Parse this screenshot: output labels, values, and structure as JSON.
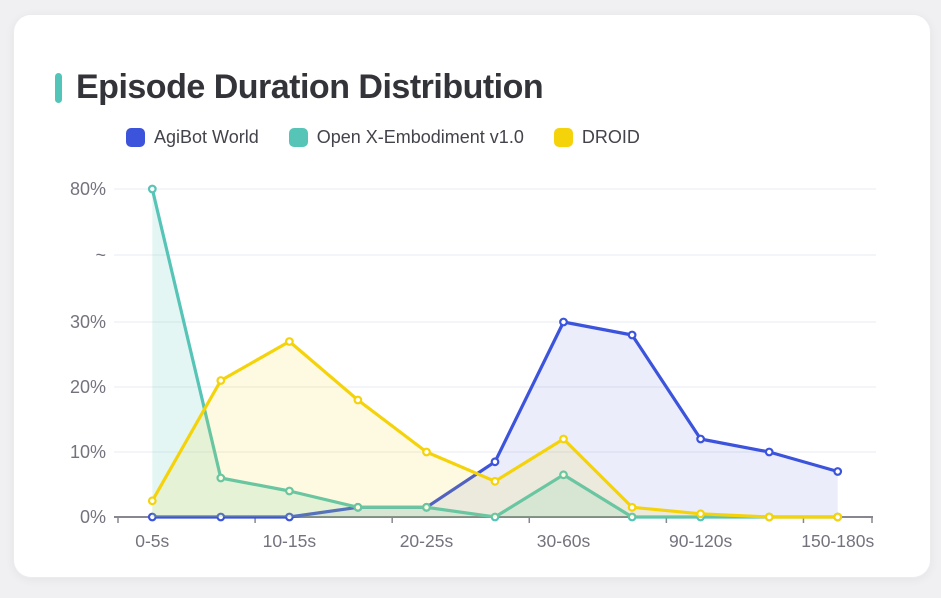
{
  "page": {
    "title_accent_color": "#52C5B8"
  },
  "chart_data": {
    "type": "line",
    "title": "Episode Duration Distribution",
    "categories": [
      "0-5s",
      "",
      "10-15s",
      "",
      "20-25s",
      "",
      "30-60s",
      "",
      "90-120s",
      "",
      "150-180s"
    ],
    "series": [
      {
        "name": "AgiBot World",
        "color": "#3C53DB",
        "fill_color": "rgba(60,83,219,0.10)",
        "values": [
          0,
          0,
          0,
          1.5,
          1.5,
          8.5,
          30,
          28,
          12,
          10,
          7
        ]
      },
      {
        "name": "Open X-Embodiment v1.0",
        "color": "#56C4B6",
        "fill_color": "rgba(86,196,182,0.16)",
        "values": [
          80,
          6,
          4,
          1.5,
          1.5,
          0,
          6.5,
          0,
          0,
          0,
          0
        ]
      },
      {
        "name": "DROID",
        "color": "#F5D30B",
        "fill_color": "rgba(245,211,11,0.12)",
        "values": [
          2.5,
          21,
          27,
          18,
          10,
          5.5,
          12,
          1.5,
          0.5,
          0,
          0
        ]
      }
    ],
    "y_ticks": [
      {
        "label": "0%",
        "value": 0
      },
      {
        "label": "10%",
        "value": 10
      },
      {
        "label": "20%",
        "value": 20
      },
      {
        "label": "30%",
        "value": 30
      },
      {
        "label": "~",
        "value": null
      },
      {
        "label": "80%",
        "value": 80
      }
    ],
    "ylim": [
      0,
      80
    ],
    "y_axis_break": {
      "between": [
        30,
        80
      ],
      "symbol": "~"
    },
    "xlabel": "",
    "ylabel": "",
    "grid": true,
    "legend_position": "top",
    "marker_style": "hollow-circle"
  }
}
